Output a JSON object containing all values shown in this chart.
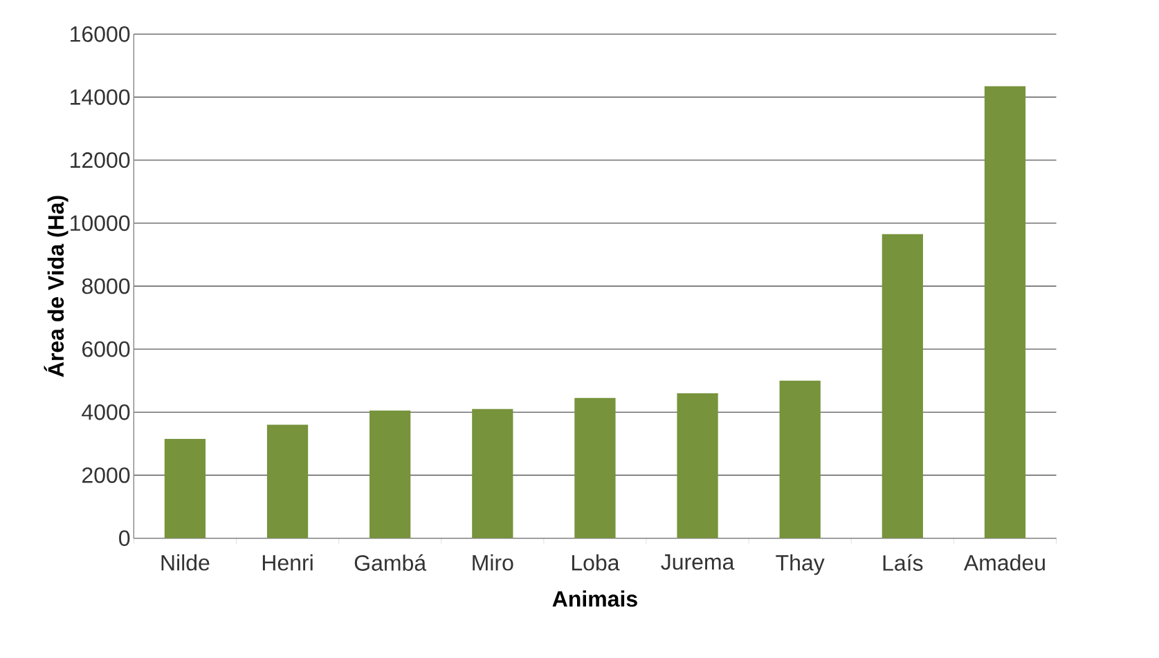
{
  "chart_data": {
    "type": "bar",
    "xlabel": "Animais",
    "ylabel": "Área de Vida (Ha)",
    "categories": [
      "Nilde",
      "Henri",
      "Gambá",
      "Miro",
      "Loba",
      "Jurema",
      "Thay",
      "Laís",
      "Amadeu"
    ],
    "values": [
      3150,
      3600,
      4050,
      4100,
      4450,
      4600,
      5000,
      9650,
      14350
    ],
    "color": "#77933c",
    "ylim": [
      0,
      16000
    ],
    "yticks": [
      0,
      2000,
      4000,
      6000,
      8000,
      10000,
      12000,
      14000,
      16000
    ],
    "grid": "y"
  }
}
